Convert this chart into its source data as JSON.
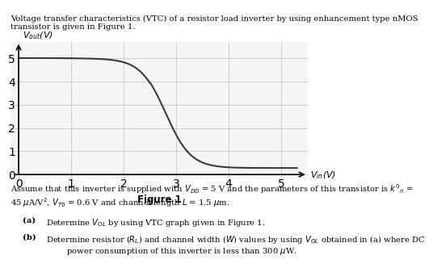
{
  "title_text": "Voltage transfer characteristics (VTC) of a resistor load inverter by using enhancement type nMOS\ntransistor is given in Figure 1.",
  "xlabel": "V$_{in}$(V)",
  "ylabel": "V$_{out}$(V)",
  "figure_label": "Figure 1",
  "xlim": [
    0,
    5.5
  ],
  "ylim": [
    0,
    5.5
  ],
  "xticks": [
    0,
    1,
    2,
    3,
    4,
    5
  ],
  "yticks": [
    0,
    1,
    2,
    3,
    4,
    5
  ],
  "line_color": "#3a3a3a",
  "line_width": 1.5,
  "grid_color": "#cccccc",
  "background_color": "#f5f5f5",
  "VDD": 5.0,
  "VTO": 0.6,
  "vout_low": 0.28,
  "caption_a": "(a) Determine V$_{OL}$ by using VTC graph given in Figure 1.",
  "caption_b": "(b) Determine resistor (R$_L$) and channel width (W) values by using V$_{OL}$ obtained in (a) where DC\n      power consumption of this inverter is less than 300 μW.",
  "assume_text": "Assume that this inverter is supplied with V$_{DD}$ = 5 V and the parameters of this transistor is k$'_n$ =\n45 μA/V$^2$, V$_{T0}$ = 0.6 V and channel length L = 1.5 μm."
}
